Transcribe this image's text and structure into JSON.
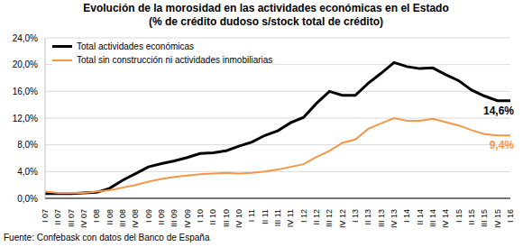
{
  "chart_data": {
    "type": "line",
    "title": "Evolución de la morosidad en las actividades económicas en el Estado",
    "subtitle": "(% de crédito dudoso s/stock total de crédito)",
    "source": "Fuente: Confebask con datos del Banco de España",
    "categories": [
      "I 07",
      "II 07",
      "III 07",
      "IV 07",
      "I 08",
      "II 08",
      "III 08",
      "IV 08",
      "I 09",
      "II 09",
      "III 09",
      "IV 09",
      "I 10",
      "II 10",
      "III 10",
      "IV 10",
      "I 11",
      "II 11",
      "III 11",
      "IV 11",
      "I 12",
      "II 12",
      "III 12",
      "IV 12",
      "I 13",
      "II 13",
      "III 13",
      "IV 13",
      "I 14",
      "II 14",
      "III 14",
      "IV 14",
      "I 15",
      "II 15",
      "III 15",
      "IV 15",
      "I 16"
    ],
    "series": [
      {
        "name": "Total actividades económicas",
        "color": "#000000",
        "values": [
          0.7,
          0.7,
          0.7,
          0.8,
          0.9,
          1.5,
          2.7,
          3.7,
          4.7,
          5.2,
          5.6,
          6.1,
          6.7,
          6.8,
          7.1,
          7.8,
          8.4,
          9.4,
          10.1,
          11.3,
          12.1,
          14.2,
          16.0,
          15.4,
          15.4,
          17.2,
          18.7,
          20.3,
          19.7,
          19.4,
          19.5,
          18.5,
          17.6,
          16.2,
          15.3,
          14.6,
          14.6
        ]
      },
      {
        "name": "Total sin construcción ni actividades inmobiliarias",
        "color": "#f79646",
        "values": [
          1.0,
          0.8,
          0.8,
          0.8,
          1.0,
          1.2,
          1.6,
          2.0,
          2.5,
          2.9,
          3.2,
          3.4,
          3.6,
          3.7,
          3.8,
          3.7,
          3.8,
          4.0,
          4.3,
          4.7,
          5.1,
          6.2,
          7.1,
          8.3,
          8.8,
          10.4,
          11.2,
          12.0,
          11.6,
          11.6,
          11.9,
          11.4,
          10.9,
          10.2,
          9.6,
          9.4,
          9.4
        ]
      }
    ],
    "annotations": [
      {
        "text": "14,6%",
        "series": "Total actividades económicas"
      },
      {
        "text": "9,4%",
        "series": "Total sin construcción ni actividades inmobiliarias"
      }
    ],
    "ylim": [
      0,
      24
    ],
    "yticks": [
      {
        "value": 0,
        "label": "0,0%"
      },
      {
        "value": 4,
        "label": "4,0%"
      },
      {
        "value": 8,
        "label": "8,0%"
      },
      {
        "value": 12,
        "label": "12,0%"
      },
      {
        "value": 16,
        "label": "16,0%"
      },
      {
        "value": 20,
        "label": "20,0%"
      },
      {
        "value": 24,
        "label": "24,0%"
      }
    ],
    "grid": true,
    "legend": "upper left"
  }
}
